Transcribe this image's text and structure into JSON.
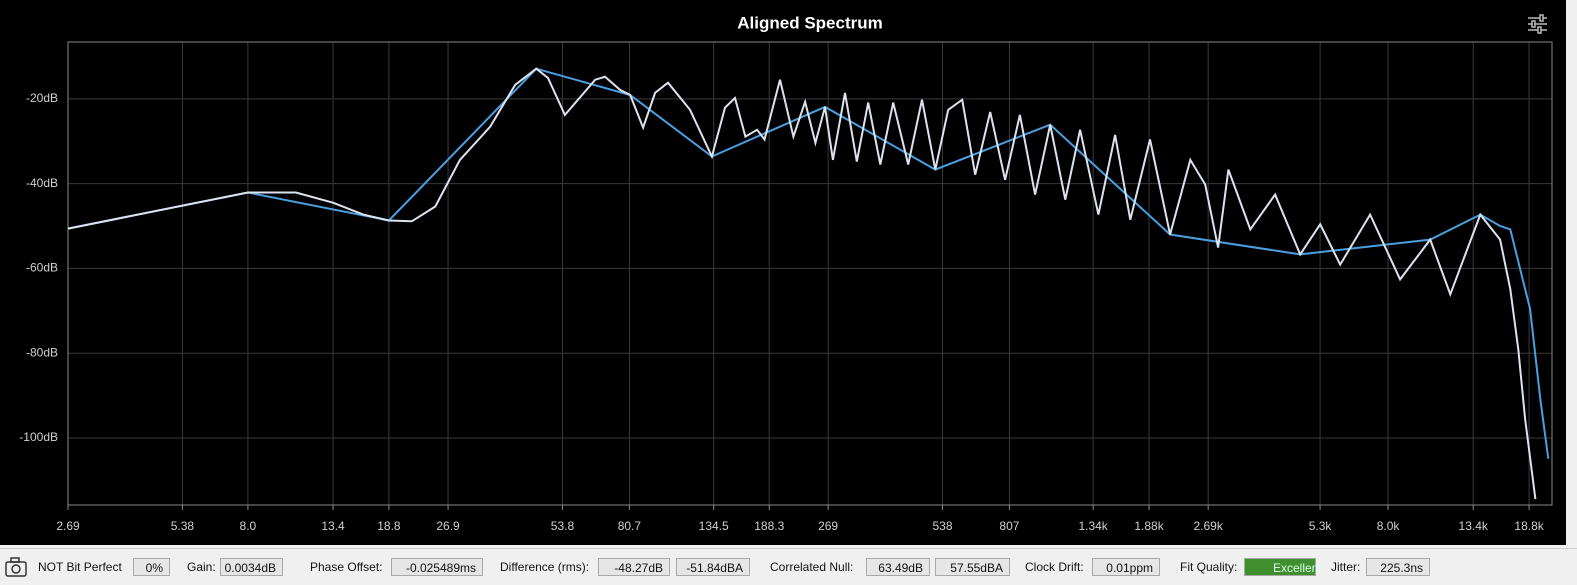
{
  "chart_data": {
    "type": "line",
    "title": "Aligned Spectrum",
    "xscale": "log",
    "grid": true,
    "xlim": [
      2.69,
      21600
    ],
    "ylim": [
      -115.8,
      -6.6
    ],
    "xticks": [
      2.69,
      5.38,
      {
        "value": 8,
        "label": "8.0"
      },
      13.4,
      18.8,
      26.9,
      53.8,
      80.7,
      134.5,
      188.3,
      269,
      538,
      807,
      {
        "value": 1340,
        "label": "1.34k"
      },
      {
        "value": 1880,
        "label": "1.88k"
      },
      {
        "value": 2690,
        "label": "2.69k"
      },
      {
        "value": 5300,
        "label": "5.3k"
      },
      {
        "value": 8000,
        "label": "8.0k"
      },
      {
        "value": 13400,
        "label": "13.4k"
      },
      {
        "value": 18800,
        "label": "18.8k"
      }
    ],
    "yticks": [
      {
        "value": -20,
        "label": "-20dB"
      },
      {
        "value": -40,
        "label": "-40dB"
      },
      {
        "value": -60,
        "label": "-60dB"
      },
      {
        "value": -80,
        "label": "-80dB"
      },
      {
        "value": -100,
        "label": "-100dB"
      }
    ],
    "series": [
      {
        "color": "#4a9fe0",
        "x": [
          2.69,
          8.0,
          18.8,
          45.9,
          81.1,
          133,
          264,
          515,
          1033,
          2136,
          4697,
          10324,
          13988,
          15777,
          16777,
          17813,
          18914,
          20127,
          21122
        ],
        "values": [
          -50.6,
          -42.1,
          -48.7,
          -12.9,
          -19.1,
          -33.6,
          -21.9,
          -36.7,
          -26.1,
          -52.0,
          -56.7,
          -53.2,
          -47.3,
          -50.0,
          -50.8,
          -60.2,
          -69.6,
          -90.8,
          -104.9
        ]
      },
      {
        "color": "#dde3ee",
        "x": [
          2.69,
          8.0,
          10.7,
          13.4,
          16.1,
          18.8,
          21.6,
          24.9,
          28.9,
          34.7,
          40.4,
          45.9,
          49.3,
          54.6,
          65.6,
          69.6,
          76.3,
          81.1,
          87.7,
          94.3,
          102,
          116.5,
          133,
          144,
          153,
          163,
          175,
          183,
          201,
          218,
          234,
          249,
          264,
          277,
          298,
          320,
          343,
          369,
          399,
          437,
          475,
          515,
          557,
          606,
          656,
          718,
          786,
          860,
          943,
          1033,
          1132,
          1238,
          1383,
          1531,
          1678,
          1891,
          2136,
          2414,
          2642,
          2857,
          3040,
          3473,
          4035,
          4697,
          5302,
          5985,
          7174,
          8605,
          10324,
          11661,
          13988,
          15777,
          16777,
          17609,
          18354,
          19532
        ],
        "values": [
          -50.6,
          -42.1,
          -42.1,
          -44.5,
          -47.3,
          -48.7,
          -48.9,
          -45.4,
          -34.4,
          -26.6,
          -16.7,
          -12.9,
          -15.1,
          -23.8,
          -15.5,
          -14.8,
          -17.9,
          -19.1,
          -26.8,
          -18.6,
          -16.2,
          -22.6,
          -33.6,
          -22.1,
          -19.8,
          -28.9,
          -27.3,
          -29.6,
          -15.5,
          -28.9,
          -20.7,
          -30.4,
          -21.9,
          -34.4,
          -18.6,
          -34.8,
          -20.9,
          -35.5,
          -20.9,
          -35.5,
          -20.2,
          -36.7,
          -22.6,
          -20.2,
          -37.9,
          -23.1,
          -39.1,
          -23.8,
          -42.6,
          -26.1,
          -43.8,
          -27.3,
          -47.3,
          -28.5,
          -48.5,
          -29.6,
          -52.0,
          -34.4,
          -40.2,
          -55.1,
          -36.7,
          -50.8,
          -42.6,
          -56.7,
          -49.6,
          -59.1,
          -47.3,
          -62.6,
          -53.2,
          -66.1,
          -47.3,
          -53.2,
          -64.9,
          -79.1,
          -95.5,
          -114.4
        ]
      }
    ]
  },
  "status_bar": {
    "items": [
      {
        "label": "NOT Bit Perfect",
        "values": [
          "0%"
        ]
      },
      {
        "label": "Gain:",
        "values": [
          "0.0034dB"
        ]
      },
      {
        "label": "Phase Offset:",
        "values": [
          "-0.025489ms"
        ]
      },
      {
        "label": "Difference (rms):",
        "values": [
          "-48.27dB",
          "-51.84dBA"
        ]
      },
      {
        "label": "Correlated Null:",
        "values": [
          "63.49dB",
          "57.55dBA"
        ]
      },
      {
        "label": "Clock Drift:",
        "values": [
          "0.01ppm"
        ]
      },
      {
        "label": "Fit Quality:",
        "values": [
          "Excellent"
        ]
      },
      {
        "label": "Jitter:",
        "values": [
          "225.3ns"
        ]
      }
    ]
  }
}
